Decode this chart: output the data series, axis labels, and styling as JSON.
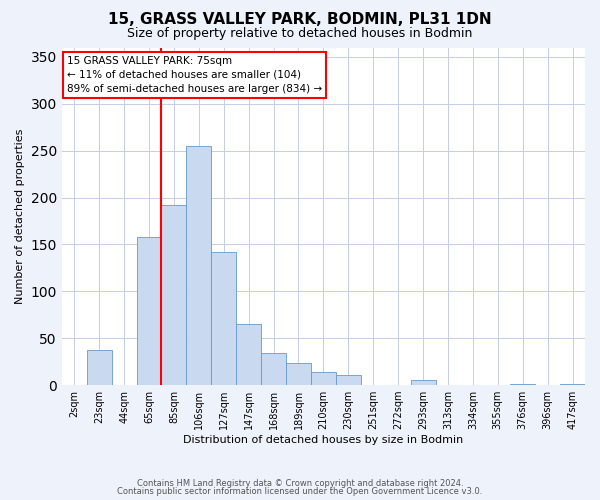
{
  "title": "15, GRASS VALLEY PARK, BODMIN, PL31 1DN",
  "subtitle": "Size of property relative to detached houses in Bodmin",
  "xlabel": "Distribution of detached houses by size in Bodmin",
  "ylabel": "Number of detached properties",
  "bar_labels": [
    "2sqm",
    "23sqm",
    "44sqm",
    "65sqm",
    "85sqm",
    "106sqm",
    "127sqm",
    "147sqm",
    "168sqm",
    "189sqm",
    "210sqm",
    "230sqm",
    "251sqm",
    "272sqm",
    "293sqm",
    "313sqm",
    "334sqm",
    "355sqm",
    "376sqm",
    "396sqm",
    "417sqm"
  ],
  "bar_values": [
    0,
    37,
    0,
    158,
    192,
    255,
    142,
    65,
    34,
    24,
    14,
    11,
    0,
    0,
    5,
    0,
    0,
    0,
    1,
    0,
    1
  ],
  "bar_color": "#c9d9f0",
  "bar_edge_color": "#6699cc",
  "vline_x": 3.5,
  "vline_color": "red",
  "annotation_title": "15 GRASS VALLEY PARK: 75sqm",
  "annotation_line1": "← 11% of detached houses are smaller (104)",
  "annotation_line2": "89% of semi-detached houses are larger (834) →",
  "annotation_box_color": "white",
  "annotation_box_edge": "red",
  "ylim": [
    0,
    360
  ],
  "footer1": "Contains HM Land Registry data © Crown copyright and database right 2024.",
  "footer2": "Contains public sector information licensed under the Open Government Licence v3.0.",
  "bg_color": "#eef2fb",
  "plot_bg_color": "#ffffff",
  "grid_color": "#c5cde8"
}
